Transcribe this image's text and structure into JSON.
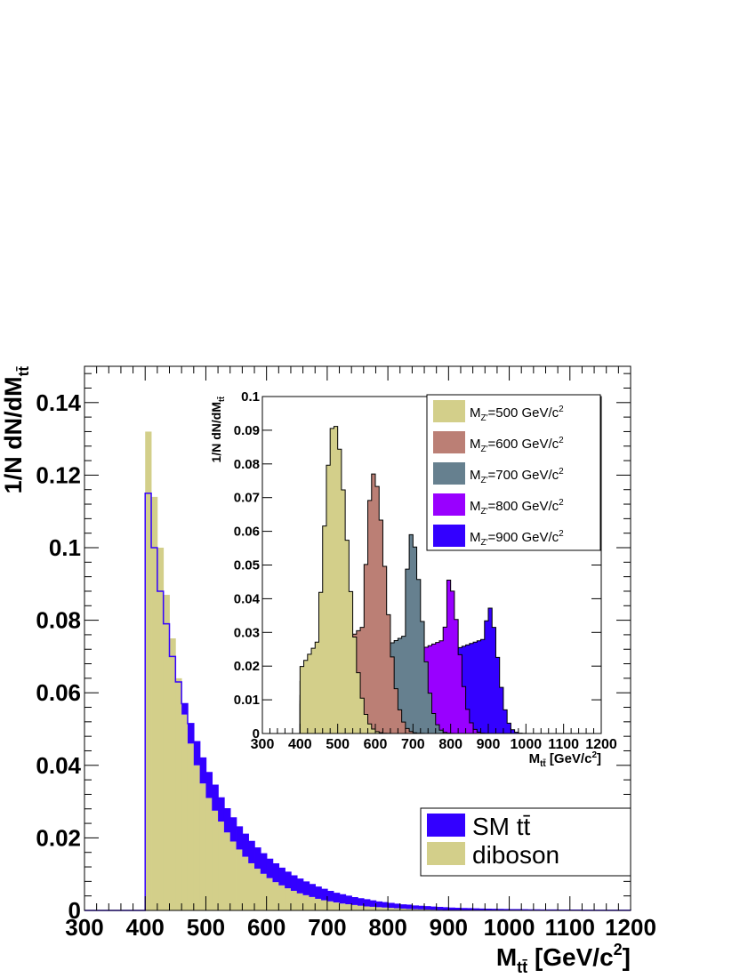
{
  "chart_data": [
    {
      "type": "bar",
      "title": "",
      "xlabel": "M",
      "xlabel_sub": "tt̄",
      "xlabel_units": "[GeV/c",
      "ylabel": "1/N dN/dM",
      "ylabel_sub": "tt̄",
      "xlim": [
        300,
        1200
      ],
      "ylim": [
        0,
        0.15
      ],
      "xticks": [
        "300",
        "400",
        "500",
        "600",
        "700",
        "800",
        "900",
        "1000",
        "1100",
        "1200"
      ],
      "yticks": [
        "0",
        "0.02",
        "0.04",
        "0.06",
        "0.08",
        "0.1",
        "0.12",
        "0.14"
      ],
      "bin_start": 400,
      "bin_width": 10,
      "legend": {
        "position": "bottom-right",
        "entries": [
          {
            "label": "SM tt̄",
            "color": "#3300ff"
          },
          {
            "label": "diboson",
            "color": "#d3cf8a"
          }
        ]
      },
      "series": [
        {
          "name": "diboson",
          "style": "filled",
          "color": "#d3cf8a",
          "values": [
            0.132,
            0.114,
            0.1,
            0.087,
            0.075,
            0.064,
            0.054,
            0.046,
            0.04,
            0.035,
            0.031,
            0.0275,
            0.0245,
            0.0215,
            0.019,
            0.0168,
            0.0148,
            0.013,
            0.0115,
            0.0101,
            0.0089,
            0.0078,
            0.0069,
            0.0061,
            0.0054,
            0.0047,
            0.0042,
            0.0037,
            0.0032,
            0.0028,
            0.0025,
            0.0022,
            0.0019,
            0.0017,
            0.0015,
            0.0013,
            0.0011,
            0.001,
            0.0009,
            0.0008,
            0.0007,
            0.0006,
            0.0005,
            0.0004,
            0.00035,
            0.0003,
            0.00025,
            0.0002,
            0.00015,
            0.0001,
            0.0001,
            8e-05,
            6e-05,
            5e-05,
            4e-05,
            3e-05,
            2e-05,
            2e-05,
            1e-05,
            1e-05,
            1e-05,
            1e-05,
            1e-05,
            1e-05,
            1e-05,
            1e-05,
            1e-05,
            1e-05,
            1e-05,
            1e-05,
            1e-05,
            1e-05,
            1e-05,
            1e-05,
            1e-05,
            1e-05,
            1e-05,
            1e-05,
            1e-05,
            1e-05
          ]
        },
        {
          "name": "SM tt̄",
          "style": "line",
          "color": "#3300ff",
          "values": [
            0.115,
            0.1,
            0.088,
            0.079,
            0.07,
            0.063,
            0.057,
            0.0515,
            0.0465,
            0.042,
            0.038,
            0.0345,
            0.031,
            0.028,
            0.0255,
            0.023,
            0.021,
            0.019,
            0.0172,
            0.0156,
            0.0141,
            0.0128,
            0.0116,
            0.0105,
            0.0095,
            0.0086,
            0.0078,
            0.0071,
            0.0064,
            0.0058,
            0.0052,
            0.0047,
            0.0043,
            0.0039,
            0.0035,
            0.0032,
            0.0029,
            0.0026,
            0.0023,
            0.0021,
            0.0019,
            0.0017,
            0.0015,
            0.0014,
            0.0012,
            0.0011,
            0.001,
            0.0009,
            0.0008,
            0.0007,
            0.0006,
            0.00055,
            0.0005,
            0.00045,
            0.0004,
            0.00035,
            0.0003,
            0.00027,
            0.00024,
            0.00021,
            0.00019,
            0.00017,
            0.00015,
            0.00013,
            0.00012,
            0.0001,
            9e-05,
            8e-05,
            7e-05,
            6e-05,
            5e-05,
            5e-05,
            4e-05,
            4e-05,
            3e-05,
            3e-05,
            3e-05,
            2e-05,
            2e-05,
            2e-05
          ]
        }
      ]
    },
    {
      "type": "bar",
      "title": "",
      "xlabel": "M",
      "xlabel_sub": "tt̄",
      "xlabel_units": "[GeV/c",
      "ylabel": "1/N dN/dM",
      "ylabel_sub": "tt̄",
      "xlim": [
        300,
        1200
      ],
      "ylim": [
        0,
        0.1
      ],
      "xticks": [
        "300",
        "400",
        "500",
        "600",
        "700",
        "800",
        "900",
        "1000",
        "1100",
        "1200"
      ],
      "yticks": [
        "0",
        "0.01",
        "0.02",
        "0.03",
        "0.04",
        "0.05",
        "0.06",
        "0.07",
        "0.08",
        "0.09",
        "0.1"
      ],
      "bin_start": 400,
      "bin_width": 10,
      "legend": {
        "position": "top-right",
        "entries": [
          {
            "label": "M",
            "sub": "Z'",
            "rest": "=500 GeV/c",
            "color": "#d3cf8a"
          },
          {
            "label": "M",
            "sub": "Z'",
            "rest": "=600 GeV/c",
            "color": "#bb7f75"
          },
          {
            "label": "M",
            "sub": "Z'",
            "rest": "=700 GeV/c",
            "color": "#66808f"
          },
          {
            "label": "M",
            "sub": "Z'",
            "rest": "=800 GeV/c",
            "color": "#9900ff"
          },
          {
            "label": "M",
            "sub": "Z'",
            "rest": "=900 GeV/c",
            "color": "#3300ff"
          }
        ]
      },
      "series": [
        {
          "name": "M_Z'=900 GeV/c²",
          "color": "#3300ff",
          "peak": 900,
          "peak_height": 0.038,
          "base": 0.0085,
          "rise": 0.0004,
          "shape": 0.011,
          "tail": 0.0245
        },
        {
          "name": "M_Z'=800 GeV/c²",
          "color": "#9900ff",
          "peak": 795,
          "peak_height": 0.0455,
          "base": 0.0095,
          "rise": 0.00048,
          "shape": 0.013,
          "tail": 0.026
        },
        {
          "name": "M_Z'=700 GeV/c²",
          "color": "#66808f",
          "peak": 695,
          "peak_height": 0.059,
          "base": 0.011,
          "rise": 0.00065,
          "shape": 0.018,
          "tail": 0.028
        },
        {
          "name": "M_Z'=600 GeV/c²",
          "color": "#bb7f75",
          "peak": 595,
          "peak_height": 0.077,
          "base": 0.015,
          "rise": 0.001,
          "shape": 0.024,
          "tail": 0.032
        },
        {
          "name": "M_Z'=500 GeV/c²",
          "color": "#d3cf8a",
          "peak": 490,
          "peak_height": 0.092,
          "base": 0.019,
          "rise": 0.0018,
          "shape": 0.031,
          "tail": 0.036
        }
      ]
    }
  ]
}
